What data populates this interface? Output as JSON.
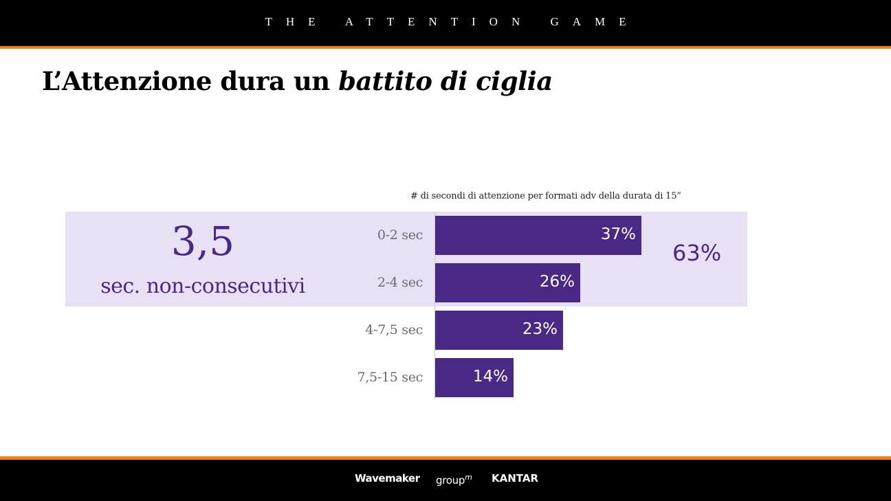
{
  "header": {
    "title": "THE ATTENTION GAME"
  },
  "slide": {
    "title_plain": "L’Attenzione dura un ",
    "title_italic": "battito di ciglia"
  },
  "highlight": {
    "value": "3,5",
    "caption": "sec. non-consecutivi",
    "total_label": "63%"
  },
  "colors": {
    "bar": "#4a2886",
    "band": "#e8e0f5",
    "accent_orange": "#f57f0a"
  },
  "chart_data": {
    "type": "bar",
    "orientation": "horizontal",
    "title": "# di secondi di attenzione per formati adv della durata di 15”",
    "categories": [
      "0-2 sec",
      "2-4 sec",
      "4-7,5 sec",
      "7,5-15 sec"
    ],
    "values": [
      37,
      26,
      23,
      14
    ],
    "data_labels": [
      "37%",
      "26%",
      "23%",
      "14%"
    ],
    "unit": "%",
    "xlabel": "",
    "ylabel": "",
    "xlim": [
      0,
      37
    ],
    "grid": false,
    "highlighted_categories": [
      "0-2 sec",
      "2-4 sec"
    ],
    "highlighted_total": "63%"
  },
  "footer": {
    "logos": [
      "Wavemaker",
      "group",
      "KANTAR"
    ],
    "groupm_suffix": "m"
  }
}
